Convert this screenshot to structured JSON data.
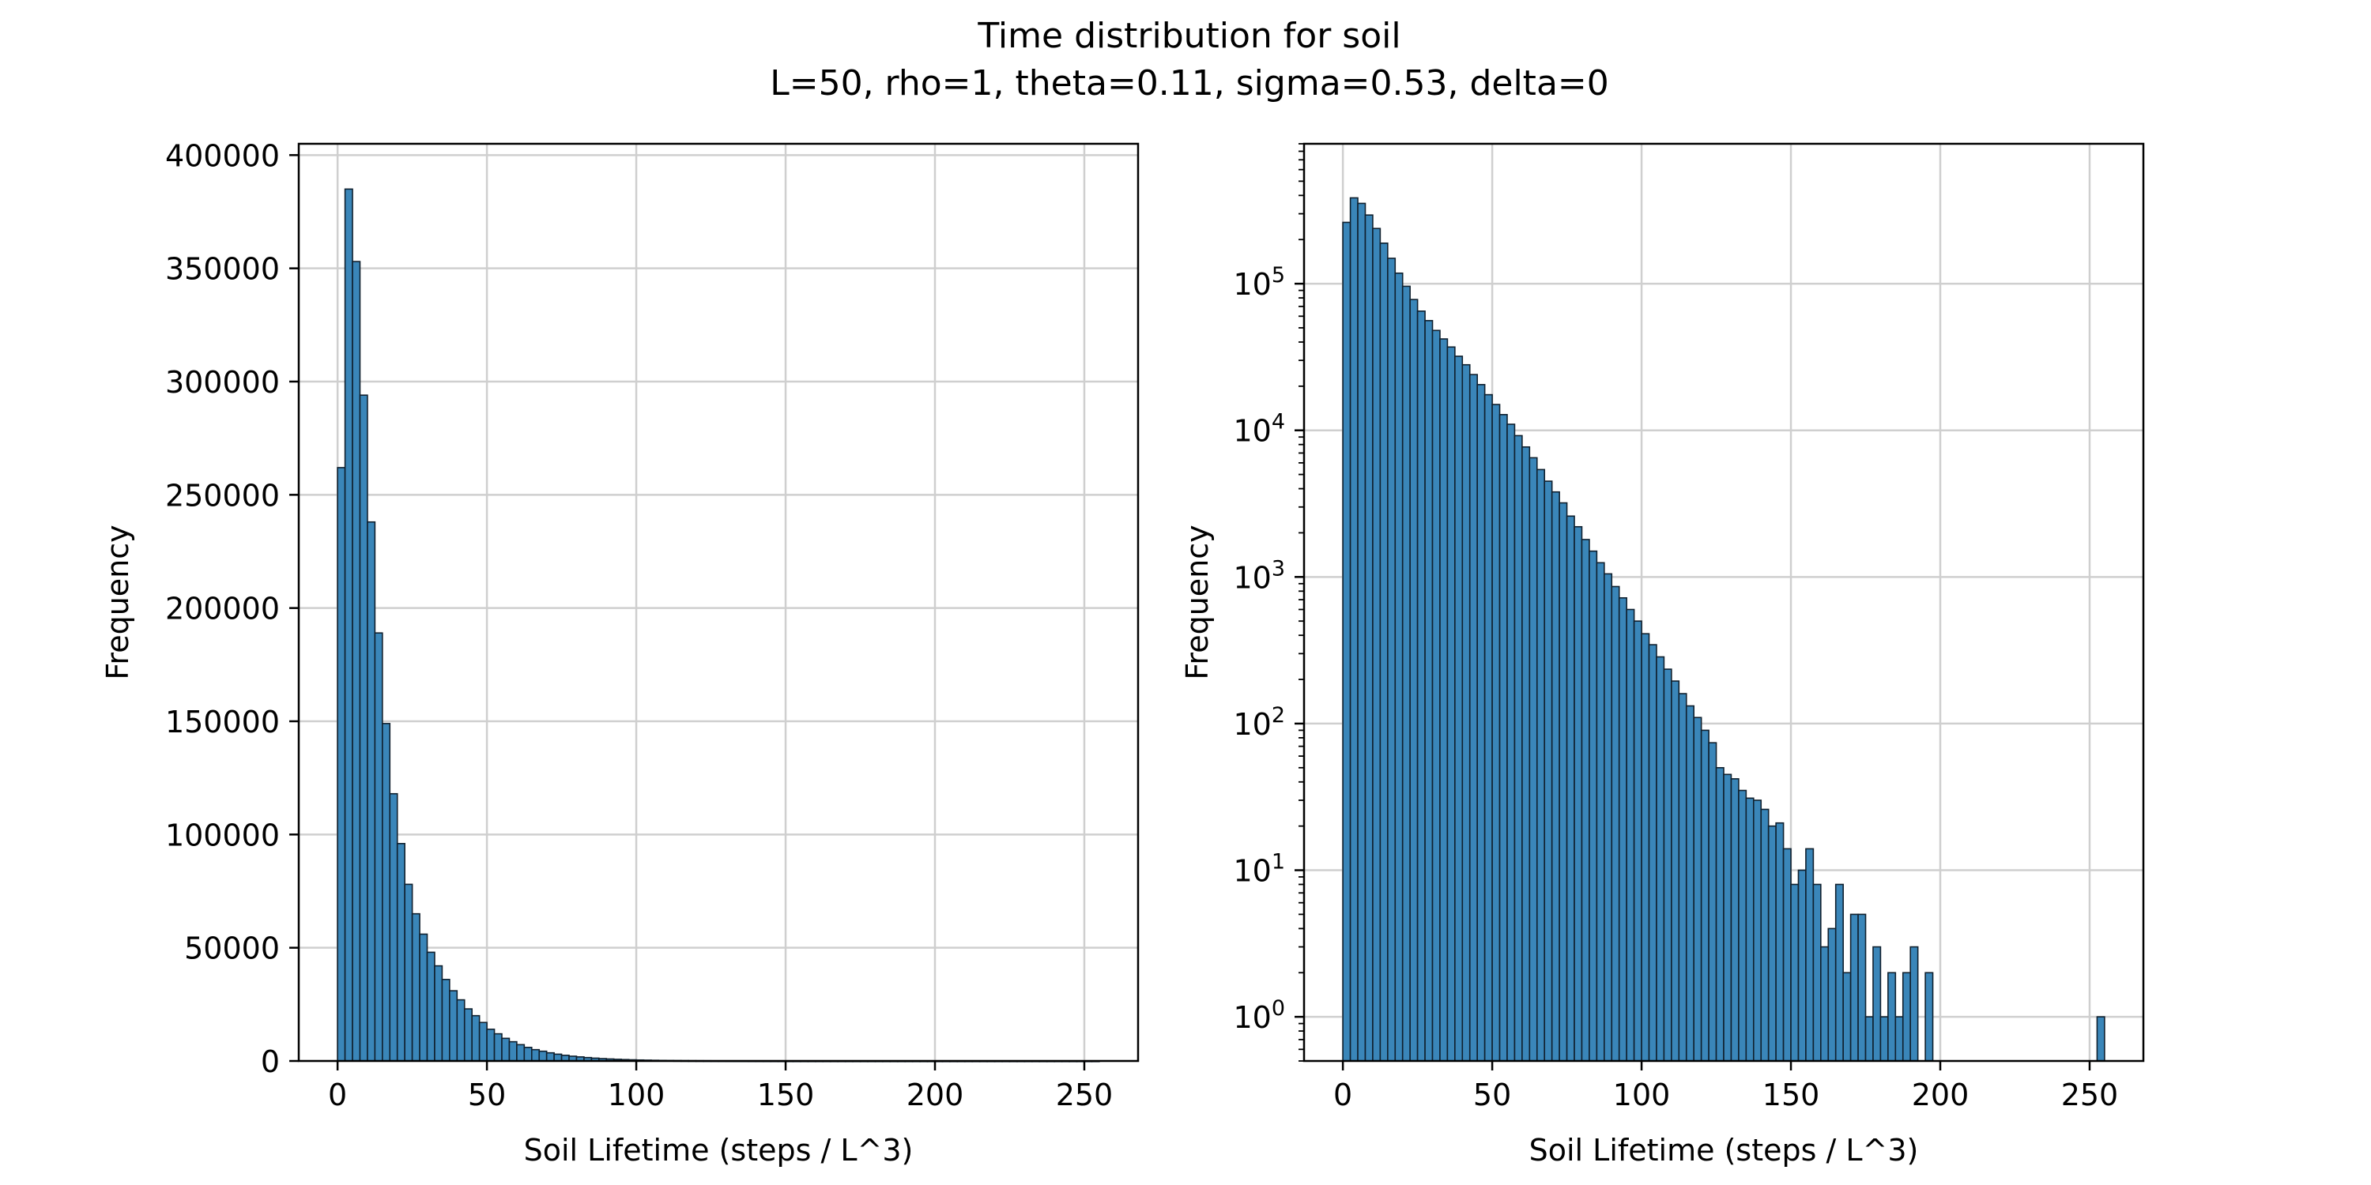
{
  "figure": {
    "title": "Time distribution for soil",
    "subtitle": "L=50, rho=1, theta=0.11, sigma=0.53, delta=0",
    "colors": {
      "bar_fill": "#3a86b9",
      "bar_edge": "#10202e",
      "grid": "#cfcfcf",
      "axis": "#000000"
    }
  },
  "chart_data": [
    {
      "type": "bar",
      "title": "",
      "xlabel": "Soil Lifetime (steps / L^3)",
      "ylabel": "Frequency",
      "yscale": "linear",
      "xlim": [
        -13,
        268
      ],
      "ylim": [
        0,
        405000
      ],
      "xticks": [
        0,
        50,
        100,
        150,
        200,
        250
      ],
      "xtick_labels": [
        "0",
        "50",
        "100",
        "150",
        "200",
        "250"
      ],
      "yticks": [
        0,
        50000,
        100000,
        150000,
        200000,
        250000,
        300000,
        350000,
        400000
      ],
      "ytick_labels": [
        "0",
        "50000",
        "100000",
        "150000",
        "200000",
        "250000",
        "300000",
        "350000",
        "400000"
      ],
      "grid": true,
      "bin_width": 2.5,
      "bin_start": 0,
      "values": [
        262000,
        385000,
        353000,
        294000,
        238000,
        189000,
        149000,
        118000,
        96000,
        78000,
        65000,
        56000,
        48000,
        42000,
        36000,
        31000,
        27000,
        23000,
        20000,
        17000,
        14000,
        12000,
        10000,
        8500,
        7200,
        6000,
        5000,
        4300,
        3600,
        3000,
        2500,
        2100,
        1800,
        1500,
        1250,
        1050,
        880,
        740,
        620,
        520,
        430,
        360,
        300,
        250,
        210,
        175,
        145,
        120,
        100,
        83,
        69,
        57,
        47,
        39,
        32,
        26,
        22,
        18,
        15,
        12,
        10,
        8,
        6.5,
        5.5,
        4.5,
        3.7,
        3,
        2.4,
        2,
        1.6,
        1.3,
        1,
        0.8,
        0.6,
        0.5,
        0.4,
        0.3,
        0.25,
        0.2,
        0.15,
        0.1,
        0.1,
        0.1,
        0.1,
        0.1,
        0.1,
        0.1,
        0.1,
        0.1,
        0.1,
        0.1,
        0.1,
        0.1,
        0.1,
        0.1,
        0.1,
        0.1,
        0.1,
        0.1,
        0.1,
        0.1,
        0.1
      ]
    },
    {
      "type": "bar",
      "title": "",
      "xlabel": "Soil Lifetime (steps / L^3)",
      "ylabel": "Frequency",
      "yscale": "log",
      "xlim": [
        -13,
        268
      ],
      "ylim": [
        0.5,
        900000
      ],
      "xticks": [
        0,
        50,
        100,
        150,
        200,
        250
      ],
      "xtick_labels": [
        "0",
        "50",
        "100",
        "150",
        "200",
        "250"
      ],
      "yticks": [
        1,
        10,
        100,
        1000,
        10000,
        100000
      ],
      "ytick_labels": [
        [
          "10",
          "0"
        ],
        [
          "10",
          "1"
        ],
        [
          "10",
          "2"
        ],
        [
          "10",
          "3"
        ],
        [
          "10",
          "4"
        ],
        [
          "10",
          "5"
        ]
      ],
      "grid": true,
      "bin_width": 2.5,
      "bin_start": 0,
      "values": [
        262000,
        385000,
        353000,
        294000,
        238000,
        189000,
        149000,
        118000,
        96000,
        78000,
        65000,
        56000,
        48000,
        42000,
        37000,
        32000,
        28000,
        24000,
        20500,
        17500,
        15000,
        12800,
        11000,
        9200,
        7700,
        6500,
        5400,
        4500,
        3800,
        3200,
        2600,
        2200,
        1800,
        1500,
        1250,
        1050,
        860,
        720,
        600,
        500,
        410,
        345,
        285,
        235,
        195,
        160,
        132,
        110,
        90,
        74,
        50,
        45,
        42,
        35,
        31,
        30,
        26,
        20,
        21,
        14,
        8,
        10,
        14,
        8,
        3,
        4,
        8,
        2,
        5,
        5,
        1,
        3,
        1,
        2,
        1,
        2,
        3,
        0,
        2,
        0,
        0,
        0,
        0,
        0,
        0,
        0,
        0,
        0,
        0,
        0,
        0,
        0,
        0,
        0,
        0,
        0,
        0,
        0,
        0,
        0,
        0,
        1
      ]
    }
  ]
}
